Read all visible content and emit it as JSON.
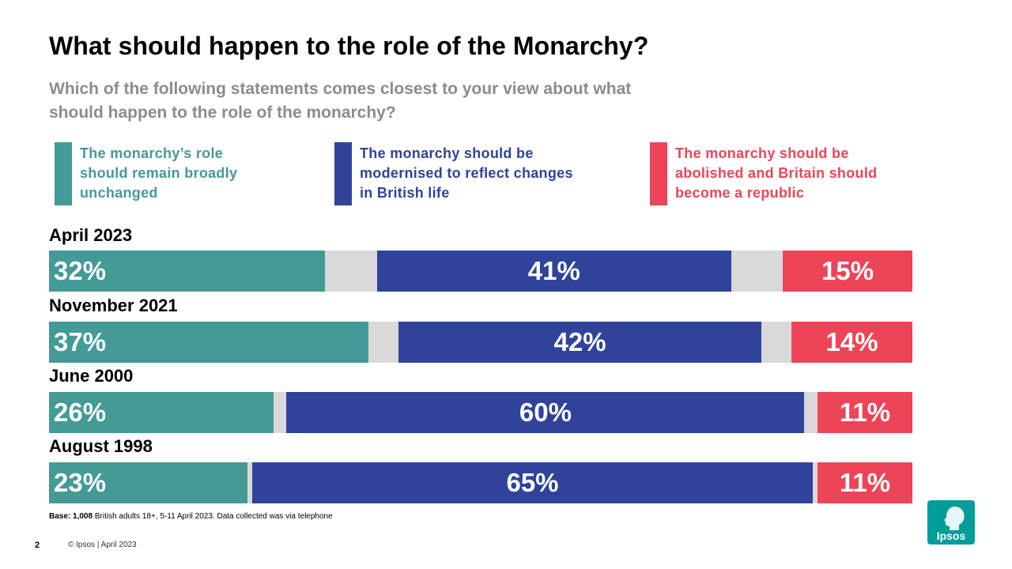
{
  "title": "What should happen to the role of the Monarchy?",
  "subtitle": "Which of the following statements comes closest to your view about what should happen to the role of the monarchy?",
  "colors": {
    "unchanged": "#449a97",
    "modernised": "#30439b",
    "abolished": "#ee4458",
    "neutral": "#d9d9d9"
  },
  "chart_data": {
    "type": "bar",
    "orientation": "horizontal",
    "stacked": true,
    "title": "What should happen to the role of the Monarchy?",
    "categories": [
      "April 2023",
      "November 2021",
      "June 2000",
      "August 1998"
    ],
    "series": [
      {
        "name": "The monarchy’s role should remain broadly unchanged",
        "values": [
          32,
          37,
          26,
          23
        ]
      },
      {
        "name": "The monarchy should be modernised to reflect changes in British life",
        "values": [
          41,
          42,
          60,
          65
        ]
      },
      {
        "name": "The monarchy should be abolished and Britain should become a republic",
        "values": [
          15,
          14,
          11,
          11
        ]
      }
    ],
    "value_labels": [
      [
        "32%",
        "41%",
        "15%"
      ],
      [
        "37%",
        "42%",
        "14%"
      ],
      [
        "26%",
        "60%",
        "11%"
      ],
      [
        "23%",
        "65%",
        "11%"
      ]
    ],
    "xlim": [
      0,
      100
    ],
    "legend": "top"
  },
  "footnote": {
    "base_label": "Base:",
    "base_count": "1,008",
    "text": "British adults 18+, 5-11 April 2023. Data collected was via telephone"
  },
  "footer": {
    "page_number": "2",
    "copyright": "© Ipsos | April 2023"
  },
  "logo": {
    "text": "Ipsos"
  }
}
